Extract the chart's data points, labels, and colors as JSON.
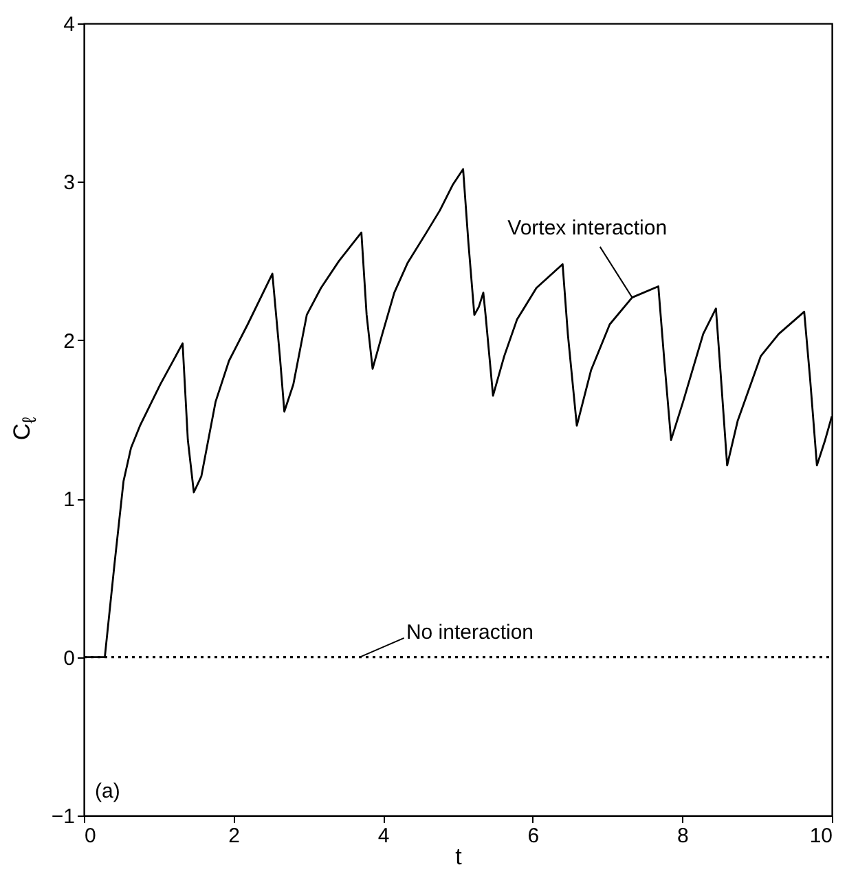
{
  "chart_data": {
    "type": "line",
    "xlabel": "t",
    "ylabel": "C$_{ℓ}$",
    "xlim": [
      0,
      10
    ],
    "xticks": [
      0,
      2,
      4,
      6,
      8,
      10
    ],
    "ylim": [
      -1,
      4
    ],
    "yticks": [
      -1,
      0,
      1,
      2,
      3,
      4
    ],
    "grid": false,
    "series": [
      {
        "color": "#000000",
        "line_style": "solid",
        "x": [
          0,
          0.28,
          0.41,
          0.53,
          0.63,
          0.75,
          1.02,
          1.32,
          1.39,
          1.47,
          1.57,
          1.76,
          1.94,
          2.19,
          2.52,
          2.62,
          2.68,
          2.8,
          2.98,
          3.17,
          3.41,
          3.71,
          3.78,
          3.86,
          3.99,
          4.15,
          4.33,
          4.58,
          4.76,
          4.93,
          5.07,
          5.14,
          5.22,
          5.28,
          5.34,
          5.37,
          5.47,
          5.62,
          5.79,
          6.05,
          6.4,
          6.47,
          6.59,
          6.78,
          7.03,
          7.33,
          7.68,
          7.76,
          7.85,
          8.01,
          8.28,
          8.45,
          8.51,
          8.6,
          8.74,
          9.05,
          9.29,
          9.63,
          9.71,
          9.8,
          9.91,
          10
        ],
        "values": [
          0,
          0,
          0.59,
          1.11,
          1.32,
          1.46,
          1.72,
          1.98,
          1.37,
          1.04,
          1.14,
          1.61,
          1.87,
          2.1,
          2.42,
          1.9,
          1.55,
          1.72,
          2.16,
          2.33,
          2.5,
          2.68,
          2.16,
          1.82,
          2.04,
          2.3,
          2.49,
          2.68,
          2.82,
          2.98,
          3.08,
          2.62,
          2.16,
          2.21,
          2.3,
          2.16,
          1.65,
          1.9,
          2.13,
          2.33,
          2.48,
          2.04,
          1.46,
          1.81,
          2.1,
          2.27,
          2.34,
          1.87,
          1.37,
          1.61,
          2.04,
          2.2,
          1.81,
          1.21,
          1.49,
          1.9,
          2.04,
          2.18,
          1.75,
          1.21,
          1.37,
          1.52
        ]
      },
      {
        "color": "#000000",
        "line_style": "dotted",
        "x": [
          0,
          10
        ],
        "values": [
          0,
          0
        ]
      }
    ],
    "annotations": [
      {
        "text": "Vortex interaction",
        "x": 7.33,
        "y": 2.27
      },
      {
        "text": "No interaction",
        "x": 3.69,
        "y": 0
      },
      "(a)"
    ]
  }
}
